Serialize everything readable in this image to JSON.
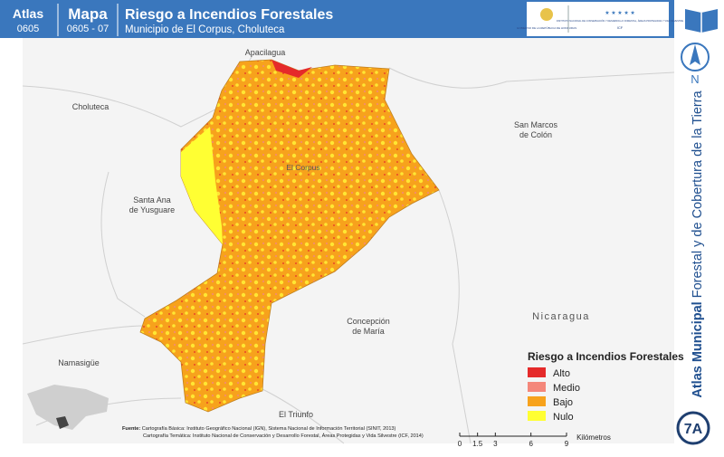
{
  "header": {
    "atlas_label": "Atlas",
    "atlas_code": "0605",
    "map_label": "Mapa",
    "map_code": "0605 - 07",
    "title": "Riesgo a Incendios Forestales",
    "subtitle": "Municipio de El Corpus, Choluteca"
  },
  "logos": {
    "gov": "GOBIERNO DE LA REPÚBLICA DE HONDURAS",
    "icf": "INSTITUTO NACIONAL DE CONSERVACIÓN Y DESARROLLO FORESTAL, ÁREAS PROTEGIDAS Y VIDA SILVESTRE",
    "icf_short": "ICF"
  },
  "places": [
    {
      "lines": [
        "Apacilagua"
      ]
    },
    {
      "lines": [
        "Choluteca"
      ]
    },
    {
      "lines": [
        "San Marcos",
        "de Colón"
      ]
    },
    {
      "lines": [
        "El Corpus"
      ]
    },
    {
      "lines": [
        "Santa Ana",
        "de Yusguare"
      ]
    },
    {
      "lines": [
        "Concepción",
        "de María"
      ]
    },
    {
      "lines": [
        "Nicaragua"
      ]
    },
    {
      "lines": [
        "Namasigüe"
      ]
    },
    {
      "lines": [
        "El Triunfo"
      ]
    }
  ],
  "legend": {
    "title": "Riesgo a Incendios Forestales",
    "items": [
      {
        "label": "Alto",
        "color": "#e52a2a"
      },
      {
        "label": "Medio",
        "color": "#f4877a"
      },
      {
        "label": "Bajo",
        "color": "#f7a21c"
      },
      {
        "label": "Nulo",
        "color": "#ffff33"
      }
    ]
  },
  "scale": {
    "ticks": [
      0,
      1.5,
      3,
      6,
      9
    ],
    "unit": "Kilómetros"
  },
  "sources": {
    "label": "Fuente:",
    "lines": [
      "Cartografía Básica: Instituto Geográfico Nacional (IGN), Sistema Nacional de Información Territorial (SINIT, 2013)",
      "Cartografía Temática: Instituto Nacional de Conservación y Desarrollo Forestal, Áreas Protegidas y Vida Silvestre (ICF, 2014)"
    ]
  },
  "side": {
    "north": "N",
    "title_bold": "Atlas Municipal",
    "title_rest": " Forestal y de Cobertura de la Tierra",
    "page": "7A"
  }
}
